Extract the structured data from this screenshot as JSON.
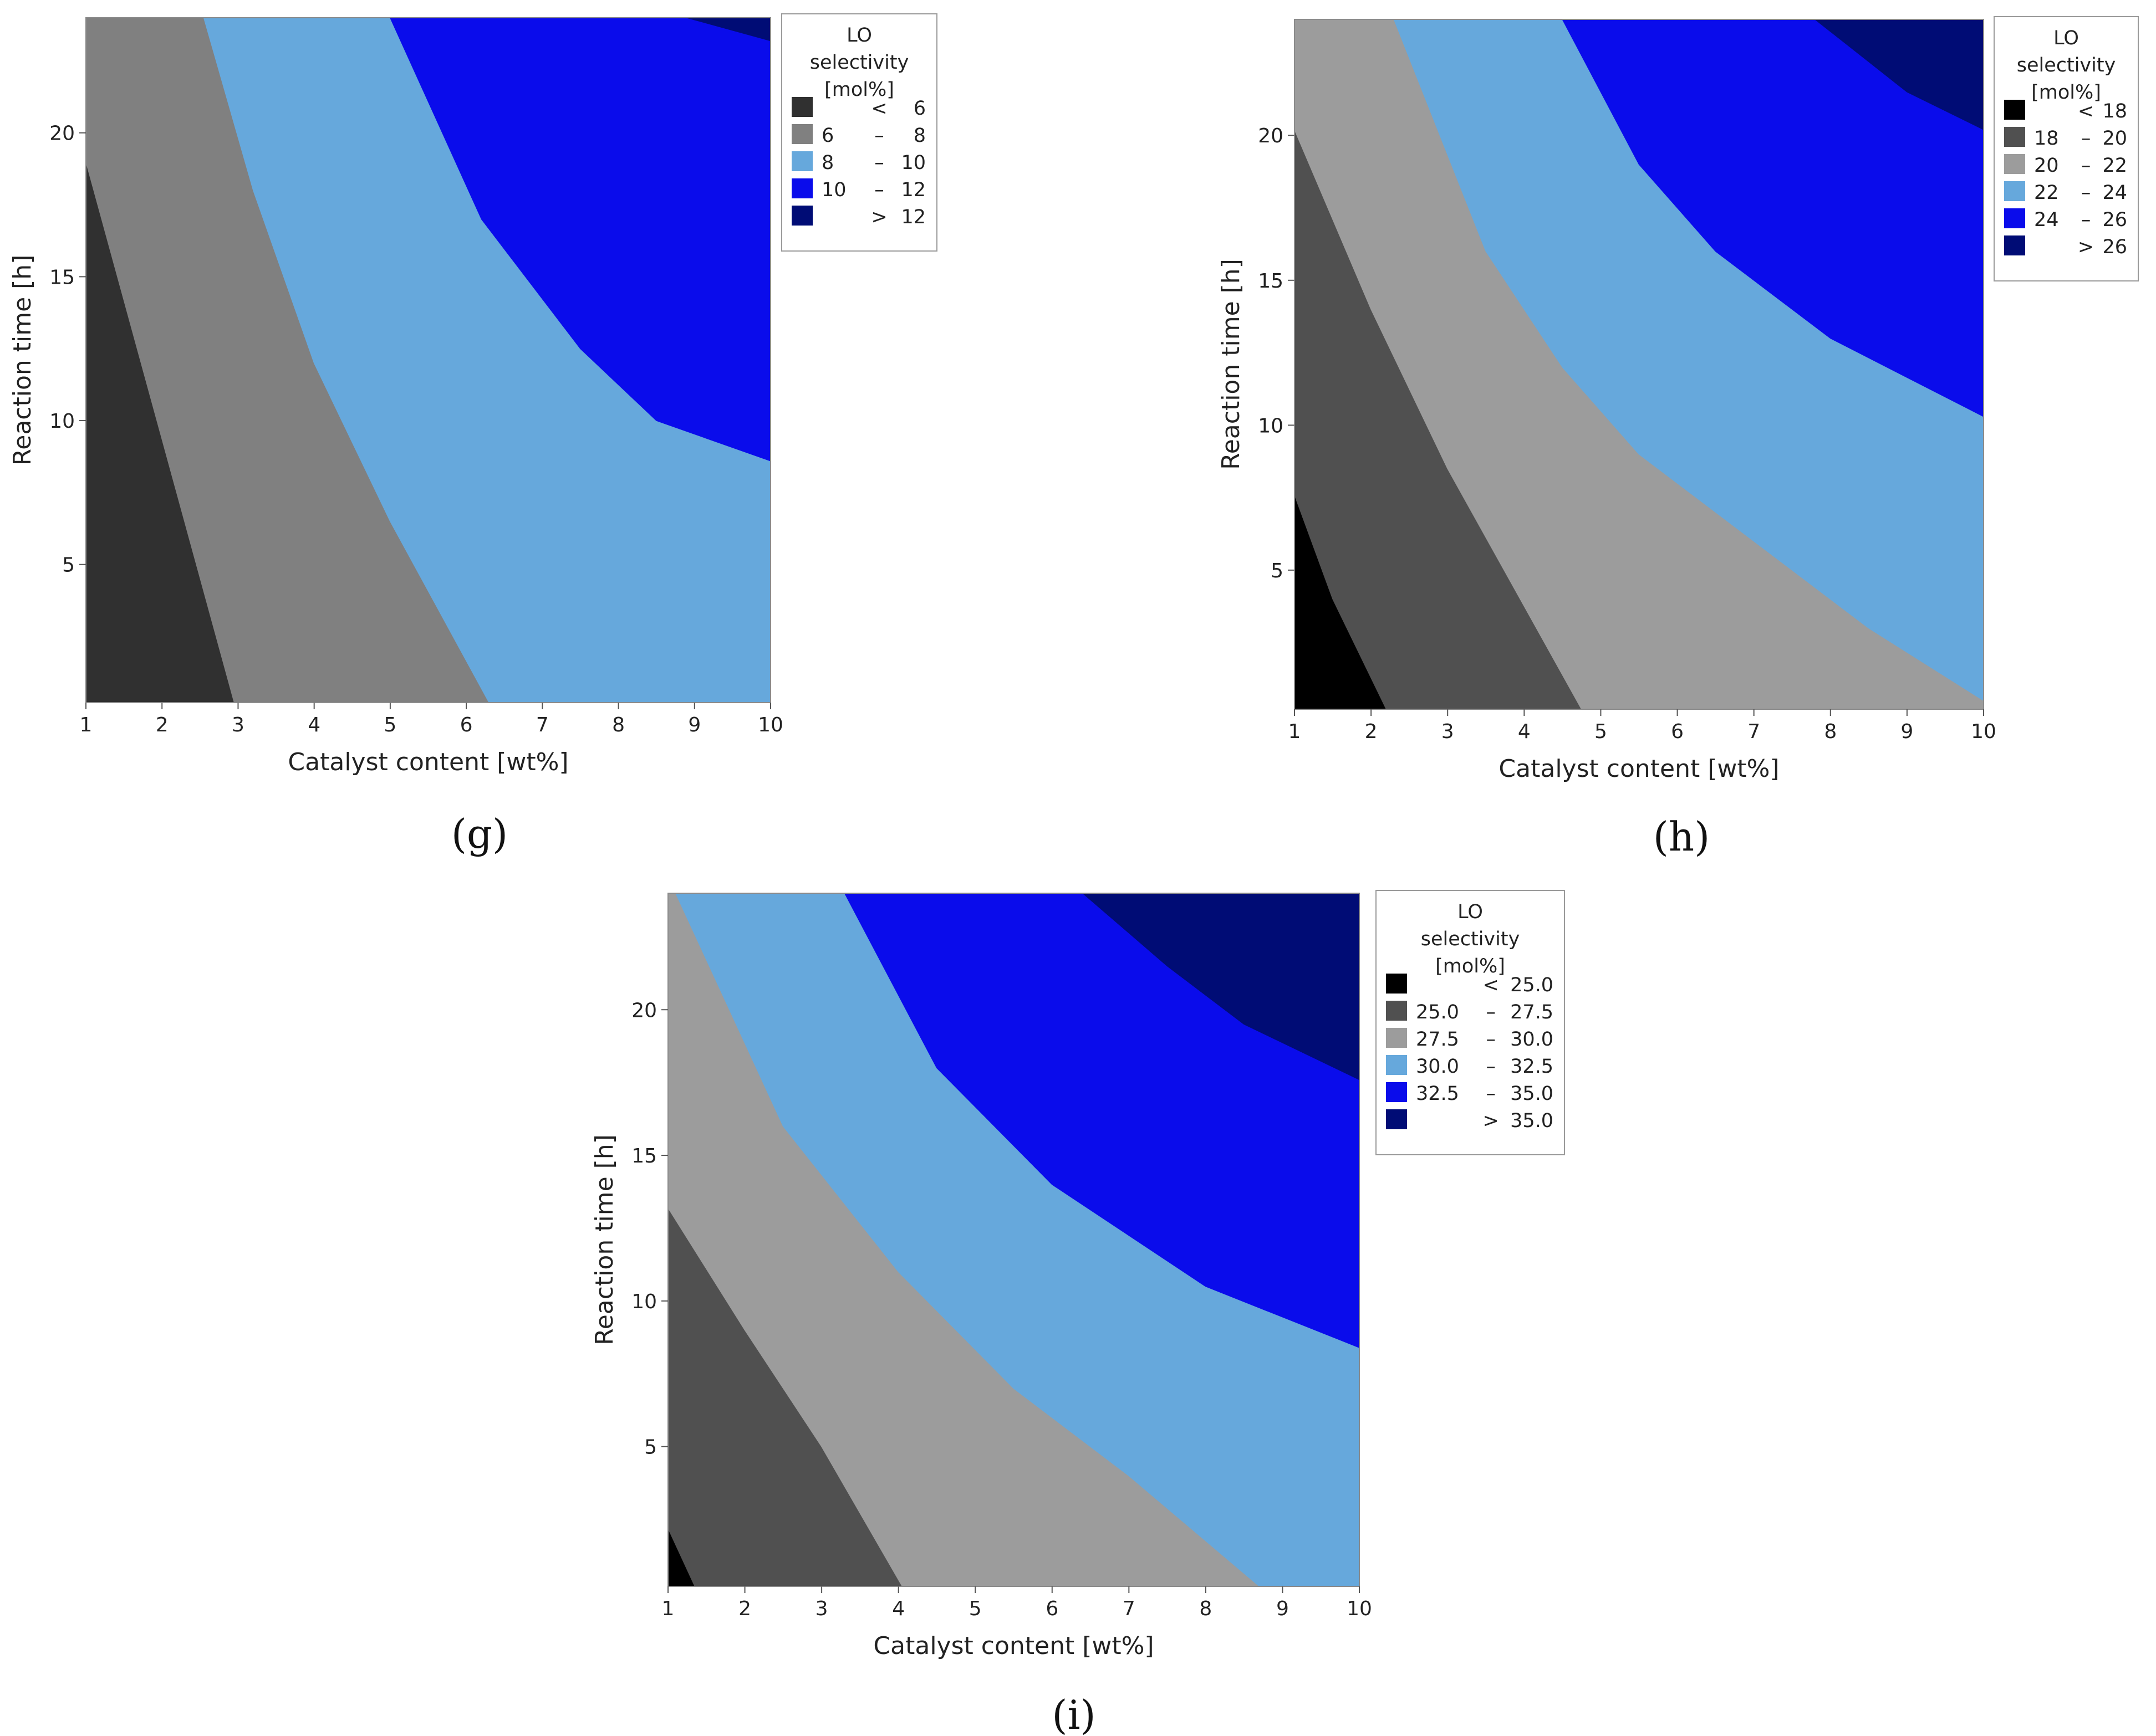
{
  "chart_data": [
    {
      "type": "contour",
      "panel_label": "(g)",
      "xlabel": "Catalyst content [wt%]",
      "ylabel": "Reaction time [h]",
      "xlim": [
        1,
        10
      ],
      "ylim": [
        0.2,
        24
      ],
      "xticks": [
        "1",
        "2",
        "3",
        "4",
        "5",
        "6",
        "7",
        "8",
        "9",
        "10"
      ],
      "yticks": [
        "5",
        "10",
        "15",
        "20"
      ],
      "legend": {
        "title": [
          "LO",
          "selectivity",
          "[mol%]"
        ],
        "items": [
          {
            "low": "",
            "sep": "<",
            "high": "6",
            "color": "#303030"
          },
          {
            "low": "6",
            "sep": "–",
            "high": "8",
            "color": "#808080"
          },
          {
            "low": "8",
            "sep": "–",
            "high": "10",
            "color": "#66a8dc"
          },
          {
            "low": "10",
            "sep": "–",
            "high": "12",
            "color": "#0a0ceb"
          },
          {
            "low": "",
            "sep": ">",
            "high": "12",
            "color": "#000c75"
          }
        ]
      },
      "regions": [
        {
          "range": "< 6",
          "color": "#303030",
          "points": [
            [
              1,
              0.2
            ],
            [
              1,
              19
            ],
            [
              2.95,
              0.2
            ]
          ]
        },
        {
          "range": "6 – 8",
          "color": "#808080",
          "points": [
            [
              1,
              19
            ],
            [
              1,
              24
            ],
            [
              2.55,
              24
            ],
            [
              3.2,
              18
            ],
            [
              4,
              12
            ],
            [
              5,
              6.5
            ],
            [
              6.3,
              0.2
            ],
            [
              2.95,
              0.2
            ]
          ]
        },
        {
          "range": "8 – 10",
          "color": "#66a8dc",
          "points": [
            [
              2.55,
              24
            ],
            [
              5,
              24
            ],
            [
              6.2,
              17
            ],
            [
              7.5,
              12.5
            ],
            [
              8.5,
              10
            ],
            [
              10,
              8.6
            ],
            [
              10,
              0.2
            ],
            [
              6.3,
              0.2
            ],
            [
              5,
              6.5
            ],
            [
              4,
              12
            ],
            [
              3.2,
              18
            ]
          ]
        },
        {
          "range": "10 – 12",
          "color": "#0a0ceb",
          "points": [
            [
              5,
              24
            ],
            [
              8.9,
              24
            ],
            [
              10,
              23.2
            ],
            [
              10,
              8.6
            ],
            [
              8.5,
              10
            ],
            [
              7.5,
              12.5
            ],
            [
              6.2,
              17
            ]
          ]
        },
        {
          "range": "> 12",
          "color": "#000c75",
          "points": [
            [
              8.9,
              24
            ],
            [
              10,
              24
            ],
            [
              10,
              23.2
            ]
          ]
        }
      ]
    },
    {
      "type": "contour",
      "panel_label": "(h)",
      "xlabel": "Catalyst content [wt%]",
      "ylabel": "Reaction time [h]",
      "xlim": [
        1,
        10
      ],
      "ylim": [
        0.2,
        24
      ],
      "xticks": [
        "1",
        "2",
        "3",
        "4",
        "5",
        "6",
        "7",
        "8",
        "9",
        "10"
      ],
      "yticks": [
        "5",
        "10",
        "15",
        "20"
      ],
      "legend": {
        "title": [
          "LO",
          "selectivity",
          "[mol%]"
        ],
        "items": [
          {
            "low": "",
            "sep": "<",
            "high": "18",
            "color": "#000000"
          },
          {
            "low": "18",
            "sep": "–",
            "high": "20",
            "color": "#505050"
          },
          {
            "low": "20",
            "sep": "–",
            "high": "22",
            "color": "#9c9c9c"
          },
          {
            "low": "22",
            "sep": "–",
            "high": "24",
            "color": "#66a8dc"
          },
          {
            "low": "24",
            "sep": "–",
            "high": "26",
            "color": "#0a0ceb"
          },
          {
            "low": "",
            "sep": ">",
            "high": "26",
            "color": "#000c75"
          }
        ]
      },
      "regions": [
        {
          "range": "< 18",
          "color": "#000000",
          "points": [
            [
              1,
              0.2
            ],
            [
              1,
              7.6
            ],
            [
              1.5,
              4
            ],
            [
              2.2,
              0.2
            ]
          ]
        },
        {
          "range": "18 – 20",
          "color": "#505050",
          "points": [
            [
              1,
              7.6
            ],
            [
              1,
              20.2
            ],
            [
              2,
              14
            ],
            [
              3,
              8.5
            ],
            [
              4.75,
              0.2
            ],
            [
              2.2,
              0.2
            ],
            [
              1.5,
              4
            ]
          ]
        },
        {
          "range": "20 – 22",
          "color": "#9c9c9c",
          "points": [
            [
              1,
              20.2
            ],
            [
              1,
              24
            ],
            [
              2.3,
              24
            ],
            [
              3.5,
              16
            ],
            [
              4.5,
              12
            ],
            [
              5.5,
              9
            ],
            [
              7,
              6
            ],
            [
              8.5,
              3
            ],
            [
              10,
              0.5
            ],
            [
              10,
              0.2
            ],
            [
              4.75,
              0.2
            ],
            [
              3,
              8.5
            ],
            [
              2,
              14
            ]
          ]
        },
        {
          "range": "22 – 24",
          "color": "#66a8dc",
          "points": [
            [
              2.3,
              24
            ],
            [
              4.5,
              24
            ],
            [
              5.5,
              19
            ],
            [
              6.5,
              16
            ],
            [
              8,
              13
            ],
            [
              10,
              10.3
            ],
            [
              10,
              0.5
            ],
            [
              8.5,
              3
            ],
            [
              7,
              6
            ],
            [
              5.5,
              9
            ],
            [
              4.5,
              12
            ],
            [
              3.5,
              16
            ]
          ]
        },
        {
          "range": "24 – 26",
          "color": "#0a0ceb",
          "points": [
            [
              4.5,
              24
            ],
            [
              7.8,
              24
            ],
            [
              9,
              21.5
            ],
            [
              10,
              20.2
            ],
            [
              10,
              10.3
            ],
            [
              8,
              13
            ],
            [
              6.5,
              16
            ],
            [
              5.5,
              19
            ]
          ]
        },
        {
          "range": "> 26",
          "color": "#000c75",
          "points": [
            [
              7.8,
              24
            ],
            [
              10,
              24
            ],
            [
              10,
              20.2
            ],
            [
              9,
              21.5
            ]
          ]
        }
      ]
    },
    {
      "type": "contour",
      "panel_label": "(i)",
      "xlabel": "Catalyst content [wt%]",
      "ylabel": "Reaction time [h]",
      "xlim": [
        1,
        10
      ],
      "ylim": [
        0.2,
        24
      ],
      "xticks": [
        "1",
        "2",
        "3",
        "4",
        "5",
        "6",
        "7",
        "8",
        "9",
        "10"
      ],
      "yticks": [
        "5",
        "10",
        "15",
        "20"
      ],
      "legend": {
        "title": [
          "LO",
          "selectivity",
          "[mol%]"
        ],
        "items": [
          {
            "low": "",
            "sep": "<",
            "high": "25.0",
            "color": "#000000"
          },
          {
            "low": "25.0",
            "sep": "–",
            "high": "27.5",
            "color": "#505050"
          },
          {
            "low": "27.5",
            "sep": "–",
            "high": "30.0",
            "color": "#9c9c9c"
          },
          {
            "low": "30.0",
            "sep": "–",
            "high": "32.5",
            "color": "#66a8dc"
          },
          {
            "low": "32.5",
            "sep": "–",
            "high": "35.0",
            "color": "#0a0ceb"
          },
          {
            "low": "",
            "sep": ">",
            "high": "35.0",
            "color": "#000c75"
          }
        ]
      },
      "regions": [
        {
          "range": "< 25.0",
          "color": "#000000",
          "points": [
            [
              1,
              0.2
            ],
            [
              1,
              2.2
            ],
            [
              1.35,
              0.2
            ]
          ]
        },
        {
          "range": "25.0 – 27.5",
          "color": "#505050",
          "points": [
            [
              1,
              2.2
            ],
            [
              1,
              13.2
            ],
            [
              2,
              9
            ],
            [
              3,
              5
            ],
            [
              4.05,
              0.2
            ],
            [
              1.35,
              0.2
            ]
          ]
        },
        {
          "range": "27.5 – 30.0",
          "color": "#9c9c9c",
          "points": [
            [
              1,
              13.2
            ],
            [
              1,
              24
            ],
            [
              1.1,
              24
            ],
            [
              2.5,
              16
            ],
            [
              4,
              11
            ],
            [
              5.5,
              7
            ],
            [
              7,
              4
            ],
            [
              8.7,
              0.2
            ],
            [
              4.05,
              0.2
            ],
            [
              3,
              5
            ],
            [
              2,
              9
            ]
          ]
        },
        {
          "range": "30.0 – 32.5",
          "color": "#66a8dc",
          "points": [
            [
              1.1,
              24
            ],
            [
              3.3,
              24
            ],
            [
              4.5,
              18
            ],
            [
              6,
              14
            ],
            [
              8,
              10.5
            ],
            [
              10,
              8.4
            ],
            [
              10,
              0.2
            ],
            [
              8.7,
              0.2
            ],
            [
              7,
              4
            ],
            [
              5.5,
              7
            ],
            [
              4,
              11
            ],
            [
              2.5,
              16
            ]
          ]
        },
        {
          "range": "32.5 – 35.0",
          "color": "#0a0ceb",
          "points": [
            [
              3.3,
              24
            ],
            [
              6.4,
              24
            ],
            [
              7.5,
              21.5
            ],
            [
              8.5,
              19.5
            ],
            [
              10,
              17.6
            ],
            [
              10,
              8.4
            ],
            [
              8,
              10.5
            ],
            [
              6,
              14
            ],
            [
              4.5,
              18
            ]
          ]
        },
        {
          "range": "> 35.0",
          "color": "#000c75",
          "points": [
            [
              6.4,
              24
            ],
            [
              10,
              24
            ],
            [
              10,
              17.6
            ],
            [
              8.5,
              19.5
            ],
            [
              7.5,
              21.5
            ]
          ]
        }
      ]
    }
  ]
}
